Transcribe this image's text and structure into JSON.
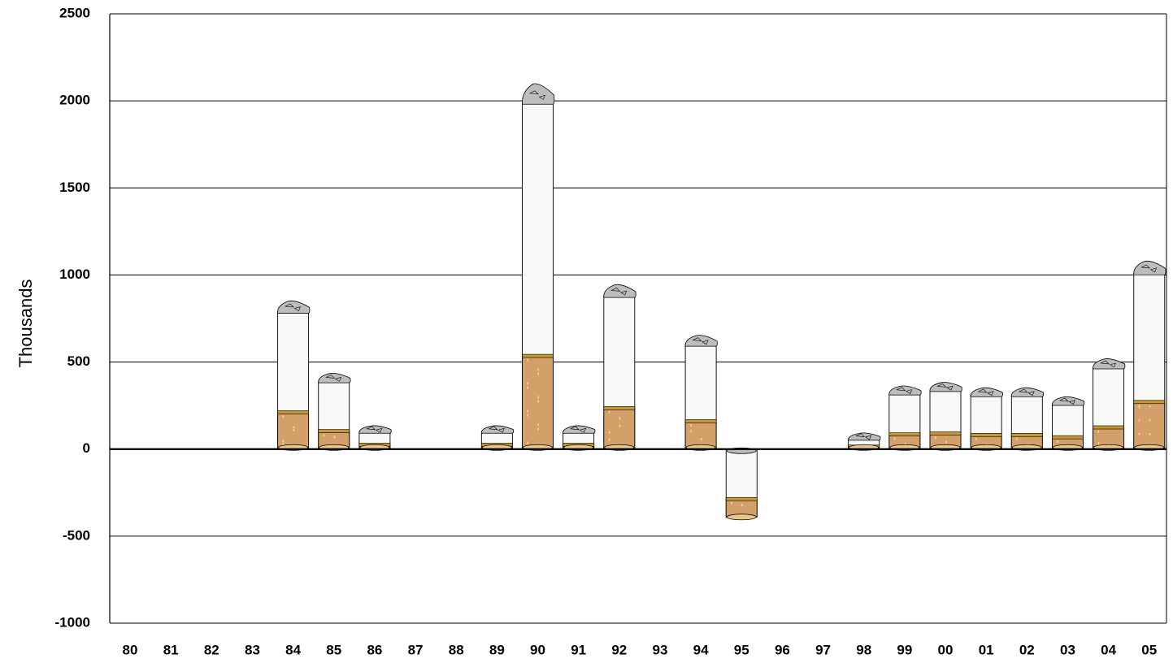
{
  "chart_data": {
    "type": "bar",
    "title": "",
    "xlabel": "",
    "ylabel": "Thousands",
    "ylim": [
      -1000,
      2500
    ],
    "yticks": [
      -1000,
      -500,
      0,
      500,
      1000,
      1500,
      2000,
      2500
    ],
    "ytick_labels": [
      "-1000",
      "-500",
      "0",
      "500",
      "1000",
      "1500",
      "2000",
      "2500"
    ],
    "grid": true,
    "bar_style": "cigarette",
    "categories": [
      "80",
      "81",
      "82",
      "83",
      "84",
      "85",
      "86",
      "87",
      "88",
      "89",
      "90",
      "91",
      "92",
      "93",
      "94",
      "95",
      "96",
      "97",
      "98",
      "99",
      "00",
      "01",
      "02",
      "03",
      "04",
      "05"
    ],
    "values": [
      0,
      0,
      0,
      0,
      790,
      390,
      100,
      0,
      0,
      100,
      1990,
      100,
      880,
      0,
      600,
      -390,
      0,
      0,
      60,
      320,
      340,
      310,
      310,
      260,
      470,
      1010
    ],
    "colors": {
      "paper": "#f8f8f6",
      "filter": "#d4a06a",
      "filter_band": "#c8962e",
      "ash": "#bdbdbd",
      "outline": "#000000"
    }
  }
}
